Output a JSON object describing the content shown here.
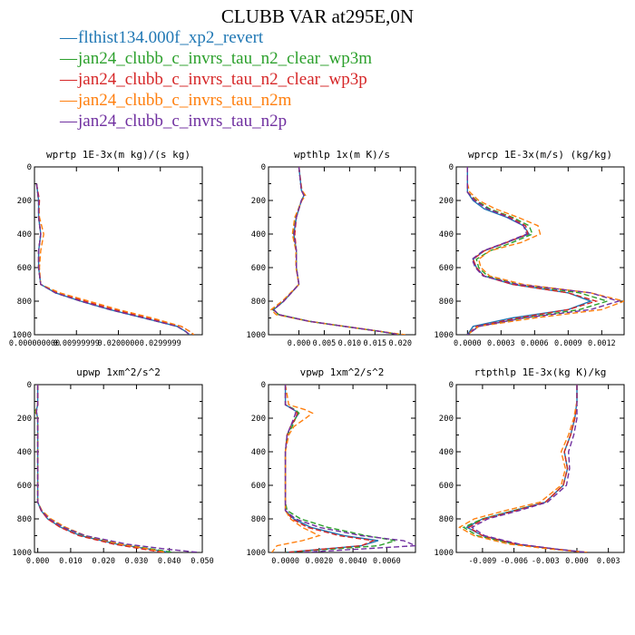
{
  "title": "CLUBB VAR at295E,0N",
  "legend": [
    {
      "label": "flthist134.000f_xp2_revert",
      "color": "#1f77b4",
      "dash": "none"
    },
    {
      "label": "jan24_clubb_c_invrs_tau_n2_clear_wp3m",
      "color": "#2ca02c",
      "dash": "6,3"
    },
    {
      "label": "jan24_clubb_c_invrs_tau_n2_clear_wp3p",
      "color": "#d62728",
      "dash": "6,3"
    },
    {
      "label": "jan24_clubb_c_invrs_tau_n2m",
      "color": "#ff7f0e",
      "dash": "6,3"
    },
    {
      "label": "jan24_clubb_c_invrs_tau_n2p",
      "color": "#7030a0",
      "dash": "6,3"
    }
  ],
  "chart_data": [
    {
      "type": "line",
      "title": "wprtp  1E-3x(m kg)/(s kg)",
      "xlim": [
        0,
        0.04
      ],
      "ylim": [
        0,
        1000
      ],
      "y_inverted": true,
      "yticks": [
        0,
        200,
        400,
        600,
        800,
        1000
      ],
      "xticks": [
        0,
        0.01,
        0.02,
        0.03
      ],
      "xtick_labels": [
        "0.000000000",
        "0.00999999",
        "0.0200000",
        "0.0299999"
      ],
      "y": [
        100,
        200,
        300,
        400,
        500,
        600,
        700,
        750,
        800,
        850,
        900,
        950,
        980,
        1000
      ],
      "series": [
        {
          "values": [
            0.0005,
            0.001,
            0.001,
            0.0015,
            0.001,
            0.001,
            0.0015,
            0.005,
            0.011,
            0.018,
            0.026,
            0.034,
            0.036,
            0.037
          ]
        },
        {
          "values": [
            0.0005,
            0.001,
            0.001,
            0.0015,
            0.001,
            0.001,
            0.0015,
            0.005,
            0.011,
            0.018,
            0.026,
            0.034,
            0.036,
            0.037
          ]
        },
        {
          "values": [
            0.0005,
            0.0012,
            0.001,
            0.0015,
            0.001,
            0.001,
            0.0015,
            0.0055,
            0.012,
            0.019,
            0.027,
            0.035,
            0.037,
            0.038
          ]
        },
        {
          "values": [
            0.0005,
            0.001,
            0.0012,
            0.0022,
            0.0015,
            0.0012,
            0.0015,
            0.006,
            0.013,
            0.02,
            0.028,
            0.035,
            0.037,
            0.038
          ]
        },
        {
          "values": [
            0.0005,
            0.001,
            0.001,
            0.0015,
            0.001,
            0.001,
            0.0015,
            0.005,
            0.011,
            0.018,
            0.026,
            0.034,
            0.036,
            0.037
          ]
        }
      ]
    },
    {
      "type": "line",
      "title": "wpthlp  1x(m K)/s",
      "xlim": [
        -0.006,
        0.023
      ],
      "ylim": [
        0,
        1000
      ],
      "y_inverted": true,
      "yticks": [
        0,
        200,
        400,
        600,
        800,
        1000
      ],
      "xticks": [
        0,
        0.005,
        0.01,
        0.015,
        0.02
      ],
      "xtick_labels": [
        "0.000",
        "0.005",
        "0.010",
        "0.015",
        "0.020"
      ],
      "y": [
        0,
        140,
        170,
        200,
        300,
        400,
        500,
        600,
        700,
        800,
        850,
        880,
        920,
        950,
        980,
        1000
      ],
      "series": [
        {
          "values": [
            0,
            0.0005,
            0.001,
            0.0005,
            -0.0005,
            -0.001,
            -0.0005,
            -0.0005,
            0,
            -0.003,
            -0.005,
            -0.004,
            0.002,
            0.009,
            0.016,
            0.02
          ]
        },
        {
          "values": [
            0,
            0.0005,
            0.0012,
            0.0005,
            -0.0007,
            -0.0012,
            -0.0005,
            -0.0005,
            0,
            -0.0032,
            -0.0052,
            -0.004,
            0.002,
            0.009,
            0.016,
            0.02
          ]
        },
        {
          "values": [
            0,
            0.0005,
            0.001,
            0.0005,
            -0.0005,
            -0.0008,
            -0.0005,
            -0.0005,
            0,
            -0.003,
            -0.005,
            -0.004,
            0.002,
            0.009,
            0.016,
            0.02
          ]
        },
        {
          "values": [
            0,
            0.0006,
            0.0013,
            0.0006,
            -0.0008,
            -0.0013,
            -0.0006,
            -0.0006,
            0,
            -0.0033,
            -0.0055,
            -0.0045,
            0.002,
            0.009,
            0.016,
            0.021
          ]
        },
        {
          "values": [
            0,
            0.0005,
            0.001,
            0.0005,
            -0.0005,
            -0.001,
            -0.0005,
            -0.0005,
            0,
            -0.003,
            -0.005,
            -0.004,
            0.002,
            0.009,
            0.016,
            0.02
          ]
        }
      ]
    },
    {
      "type": "line",
      "title": "wprcp  1E-3x(m/s) (kg/kg)",
      "xlim": [
        -0.0001,
        0.0014
      ],
      "ylim": [
        0,
        1000
      ],
      "y_inverted": true,
      "yticks": [
        0,
        200,
        400,
        600,
        800,
        1000
      ],
      "xticks": [
        0,
        0.0003,
        0.0006,
        0.0009,
        0.0012
      ],
      "xtick_labels": [
        "0.0000",
        "0.0003",
        "0.0006",
        "0.0009",
        "0.0012"
      ],
      "y": [
        0,
        100,
        150,
        200,
        250,
        300,
        350,
        400,
        450,
        500,
        550,
        600,
        650,
        700,
        750,
        800,
        850,
        900,
        950,
        1000
      ],
      "series": [
        {
          "values": [
            0,
            0,
            0,
            5e-05,
            0.00015,
            0.00035,
            0.0005,
            0.00055,
            0.00035,
            0.00015,
            5e-05,
            8e-05,
            0.00015,
            0.0004,
            0.0009,
            0.0011,
            0.0009,
            0.0004,
            5e-05,
            0
          ]
        },
        {
          "values": [
            0,
            0,
            0,
            8e-05,
            0.0002,
            0.0004,
            0.00055,
            0.00058,
            0.0004,
            0.0002,
            8e-05,
            0.0001,
            0.00018,
            0.00045,
            0.001,
            0.00125,
            0.001,
            0.0005,
            0.0001,
            0
          ]
        },
        {
          "values": [
            0,
            0,
            0,
            7e-05,
            0.00018,
            0.00038,
            0.00052,
            0.00054,
            0.00035,
            0.00015,
            5e-05,
            8e-05,
            0.00015,
            0.0004,
            0.0009,
            0.00115,
            0.0009,
            0.00045,
            8e-05,
            0
          ]
        },
        {
          "values": [
            0,
            0,
            2e-05,
            0.0001,
            0.00025,
            0.00045,
            0.00063,
            0.00065,
            0.00048,
            0.0002,
            0.0001,
            0.00012,
            0.0002,
            0.0005,
            0.0011,
            0.0014,
            0.0012,
            0.0006,
            0.0001,
            0
          ]
        },
        {
          "values": [
            0,
            0,
            0,
            6e-05,
            0.00018,
            0.00036,
            0.0005,
            0.00053,
            0.00034,
            0.00014,
            4e-05,
            7e-05,
            0.00014,
            0.00045,
            0.0011,
            0.00135,
            0.0011,
            0.0005,
            0.0001,
            0
          ]
        }
      ]
    },
    {
      "type": "line",
      "title": "upwp  1xm^2/s^2",
      "xlim": [
        -0.001,
        0.05
      ],
      "ylim": [
        0,
        1000
      ],
      "y_inverted": true,
      "yticks": [
        0,
        200,
        400,
        600,
        800,
        1000
      ],
      "xticks": [
        0,
        0.01,
        0.02,
        0.03,
        0.04,
        0.05
      ],
      "xtick_labels": [
        "0.000",
        "0.010",
        "0.020",
        "0.030",
        "0.040",
        "0.050"
      ],
      "y": [
        0,
        120,
        160,
        200,
        300,
        500,
        700,
        750,
        800,
        850,
        900,
        950,
        980,
        1000
      ],
      "series": [
        {
          "values": [
            0,
            0,
            -0.0005,
            0,
            0,
            0,
            0,
            0.001,
            0.003,
            0.007,
            0.013,
            0.024,
            0.034,
            0.04
          ]
        },
        {
          "values": [
            0,
            0,
            -0.0008,
            0,
            0,
            0,
            0,
            0.0012,
            0.0035,
            0.008,
            0.014,
            0.025,
            0.035,
            0.041
          ]
        },
        {
          "values": [
            0,
            0,
            -0.0005,
            0,
            0,
            0,
            0,
            0.001,
            0.003,
            0.0068,
            0.0125,
            0.023,
            0.032,
            0.038
          ]
        },
        {
          "values": [
            0,
            0,
            -0.0006,
            0,
            0,
            0,
            0,
            0.0013,
            0.004,
            0.0085,
            0.0145,
            0.025,
            0.034,
            0.039
          ]
        },
        {
          "values": [
            0,
            0,
            -0.0004,
            0,
            0,
            0,
            0,
            0.0011,
            0.0034,
            0.0078,
            0.0145,
            0.027,
            0.039,
            0.049
          ]
        }
      ]
    },
    {
      "type": "line",
      "title": "vpwp  1xm^2/s^2",
      "xlim": [
        -0.001,
        0.0077
      ],
      "ylim": [
        0,
        1000
      ],
      "y_inverted": true,
      "yticks": [
        0,
        200,
        400,
        600,
        800,
        1000
      ],
      "xticks": [
        0,
        0.002,
        0.004,
        0.006
      ],
      "xtick_labels": [
        "0.0000",
        "0.0020",
        "0.0040",
        "0.0060"
      ],
      "y": [
        0,
        120,
        150,
        170,
        200,
        250,
        300,
        400,
        500,
        600,
        700,
        750,
        800,
        850,
        900,
        930,
        960,
        1000
      ],
      "series": [
        {
          "values": [
            0,
            0,
            0.0005,
            0.0008,
            0.0006,
            0.0003,
            0.0001,
            0,
            0,
            0,
            0,
            0,
            0.0005,
            0.0015,
            0.0035,
            0.0055,
            0.0045,
            0
          ]
        },
        {
          "values": [
            0,
            0,
            0.0006,
            0.0008,
            0.0006,
            0.0004,
            0.0001,
            0,
            0,
            0,
            0,
            0.0001,
            0.0009,
            0.0025,
            0.0048,
            0.0065,
            0.0055,
            0
          ]
        },
        {
          "values": [
            0,
            0,
            0.0005,
            0.0007,
            0.0006,
            0.0003,
            0.0001,
            0,
            0,
            0,
            0,
            0,
            0.0004,
            0.0013,
            0.0032,
            0.0052,
            0.0045,
            0
          ]
        },
        {
          "values": [
            0,
            0.0002,
            0.0012,
            0.0016,
            0.0012,
            0.0005,
            0.0002,
            0,
            0,
            0,
            0,
            0,
            0.0003,
            0.001,
            0.002,
            0.001,
            -0.0005,
            -0.0008
          ]
        },
        {
          "values": [
            0,
            0,
            0.0005,
            0.0006,
            0.0005,
            0.0003,
            0.0001,
            0,
            0,
            0,
            0,
            0,
            0.0006,
            0.002,
            0.0045,
            0.007,
            0.0077,
            0.001
          ]
        }
      ]
    },
    {
      "type": "line",
      "title": "rtpthlp  1E-3x(kg K)/kg",
      "xlim": [
        -0.0115,
        0.0045
      ],
      "ylim": [
        0,
        1000
      ],
      "y_inverted": true,
      "yticks": [
        0,
        200,
        400,
        600,
        800,
        1000
      ],
      "xticks": [
        -0.009,
        -0.006,
        -0.003,
        0,
        0.003
      ],
      "xtick_labels": [
        "-0.009",
        "-0.006",
        "-0.003",
        "0.000",
        "0.003"
      ],
      "y": [
        0,
        100,
        200,
        300,
        400,
        500,
        600,
        700,
        750,
        800,
        850,
        900,
        950,
        980,
        1000
      ],
      "series": [
        {
          "values": [
            0,
            0,
            -0.0002,
            -0.0006,
            -0.0012,
            -0.0009,
            -0.0013,
            -0.003,
            -0.006,
            -0.009,
            -0.0105,
            -0.009,
            -0.006,
            -0.002,
            0.001
          ]
        },
        {
          "values": [
            0,
            0,
            -0.0002,
            -0.0006,
            -0.0012,
            -0.0009,
            -0.0013,
            -0.003,
            -0.006,
            -0.009,
            -0.0108,
            -0.0095,
            -0.006,
            -0.002,
            0.001
          ]
        },
        {
          "values": [
            0,
            0,
            -0.0002,
            -0.0006,
            -0.0012,
            -0.0009,
            -0.0013,
            -0.003,
            -0.0058,
            -0.0088,
            -0.0103,
            -0.009,
            -0.0058,
            -0.002,
            0.001
          ]
        },
        {
          "values": [
            0,
            0,
            -0.0003,
            -0.0008,
            -0.0015,
            -0.0011,
            -0.0015,
            -0.0035,
            -0.0068,
            -0.0098,
            -0.0112,
            -0.0098,
            -0.0065,
            -0.0025,
            0.001
          ]
        },
        {
          "values": [
            0,
            0,
            0,
            -0.0003,
            -0.0008,
            -0.0007,
            -0.001,
            -0.0028,
            -0.0055,
            -0.0085,
            -0.01,
            -0.0088,
            -0.0055,
            -0.002,
            0.001
          ]
        }
      ]
    }
  ]
}
